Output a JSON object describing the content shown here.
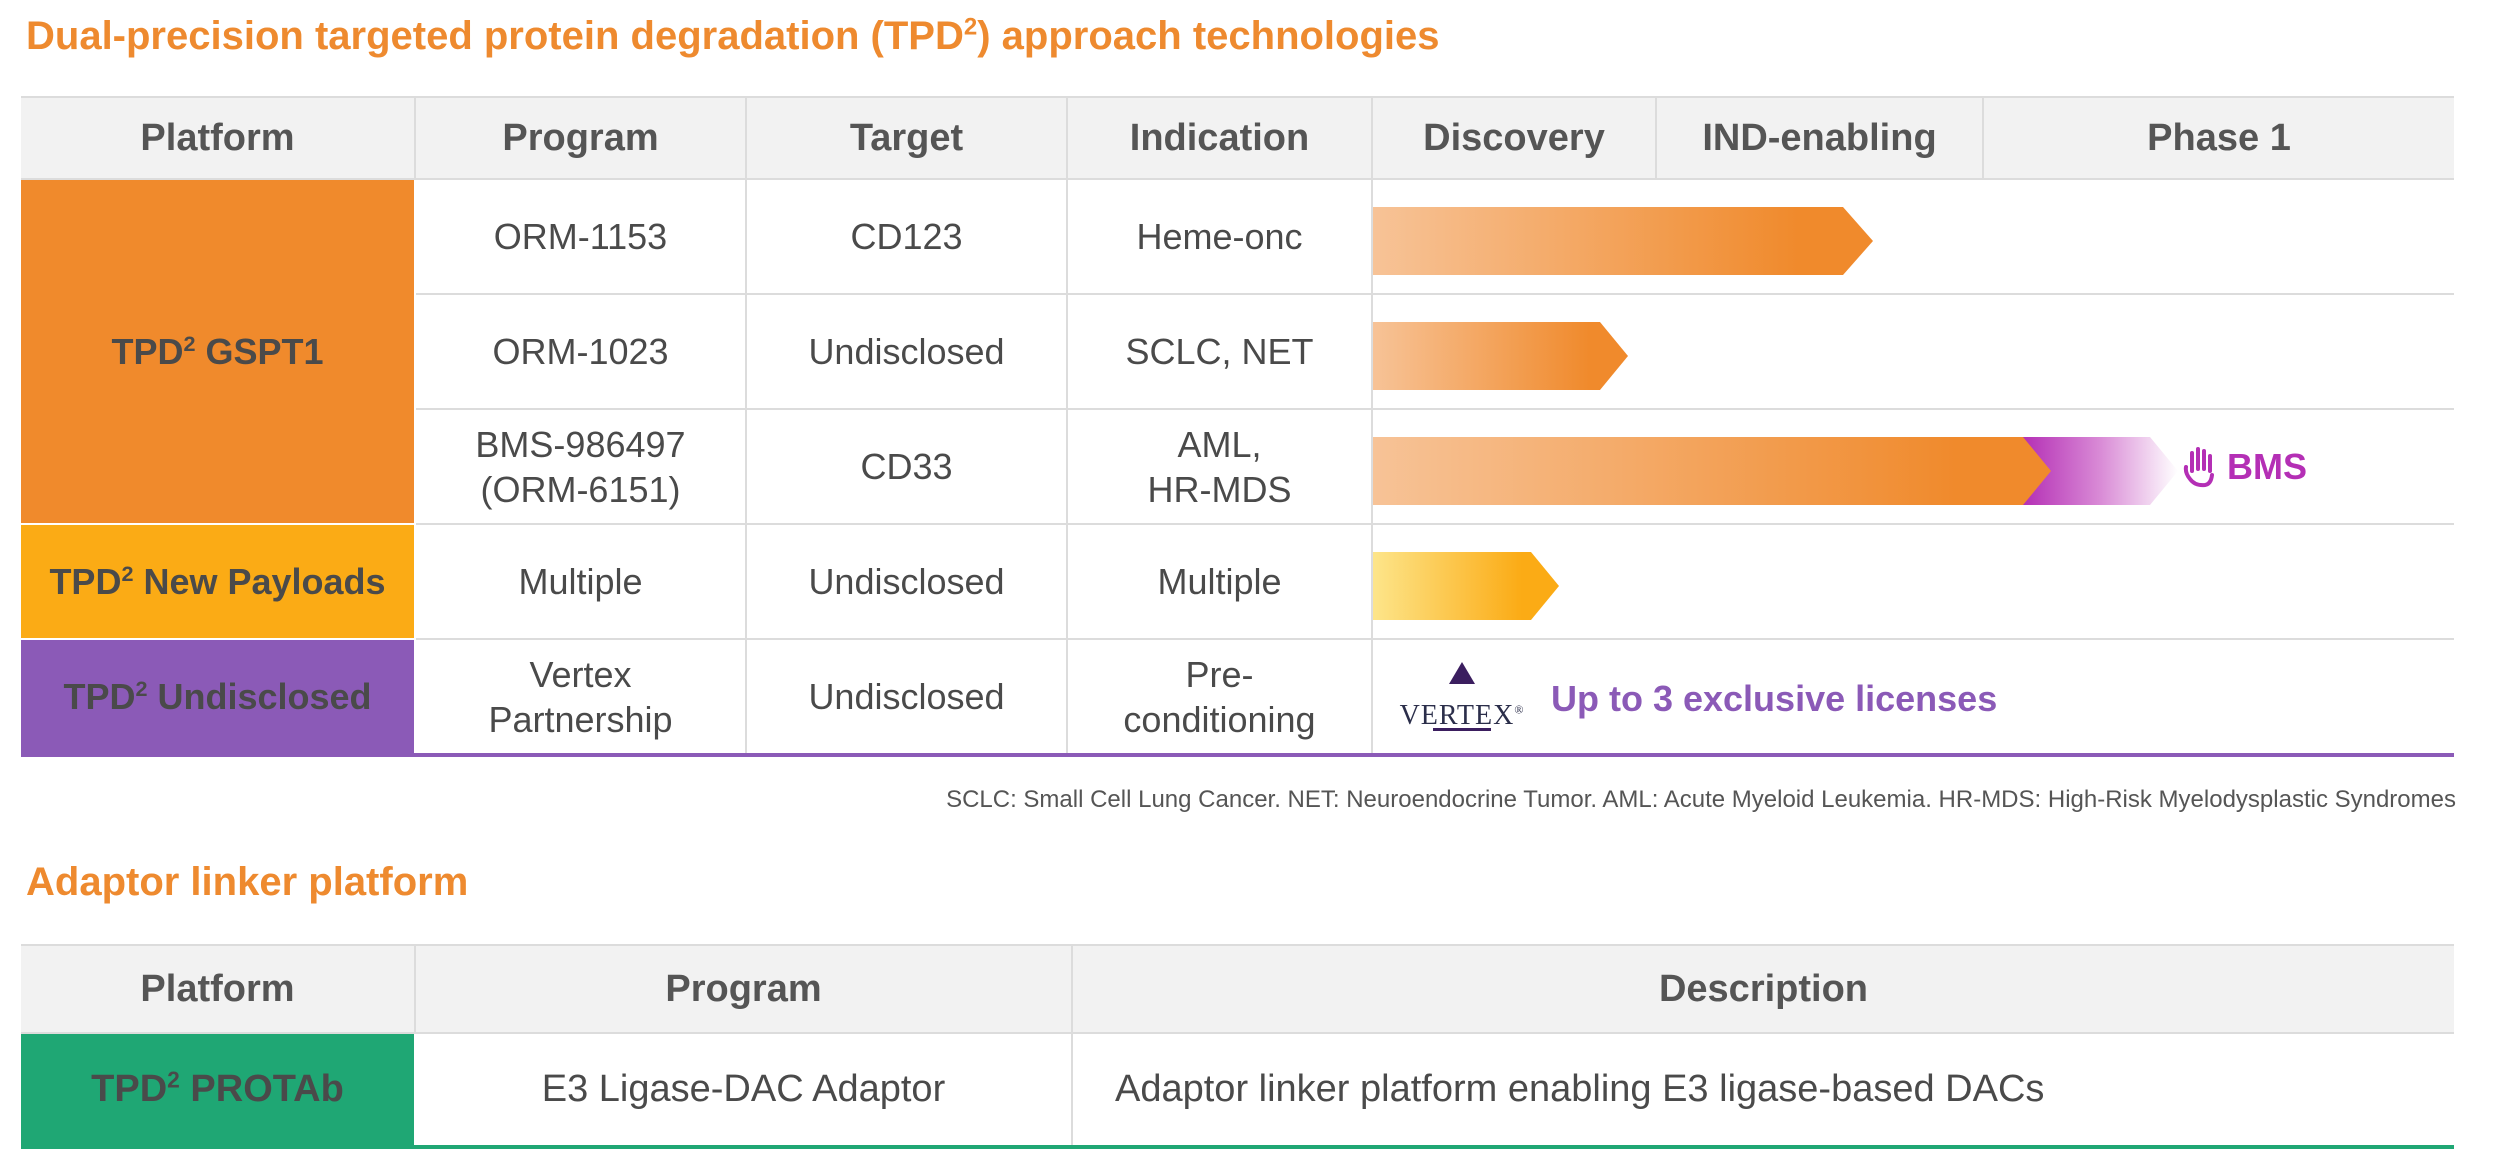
{
  "section1": {
    "title": "Dual-precision targeted protein degradation (TPD",
    "title_sup": "2",
    "title_end": ") approach technologies"
  },
  "pipeline": {
    "headers": [
      "Platform",
      "Program",
      "Target",
      "Indication",
      "Discovery",
      "IND-enabling",
      "Phase 1"
    ],
    "platforms": {
      "gspt1": {
        "prefix": "TPD",
        "sup": "2",
        "suffix": " GSPT1",
        "color": "#f08a2c"
      },
      "payloads": {
        "prefix": "TPD",
        "sup": "2",
        "suffix": " New Payloads",
        "color": "#fbab15"
      },
      "undisclosed": {
        "prefix": "TPD",
        "sup": "2",
        "suffix": " Undisclosed",
        "color": "#8b5ab7"
      }
    },
    "rows": [
      {
        "program": "ORM-1153",
        "target": "CD123",
        "indication": "Heme-onc",
        "progress_pct_of_phase_columns": 46
      },
      {
        "program": "ORM-1023",
        "target": "Undisclosed",
        "indication": "SCLC, NET",
        "progress_pct_of_phase_columns": 24
      },
      {
        "program_line1": "BMS-986497",
        "program_line2": "(ORM-6151)",
        "target": "CD33",
        "indication_line1": "AML,",
        "indication_line2": "HR-MDS",
        "progress_pct_of_phase_columns": 63,
        "partner": "BMS",
        "partner_color": "#b42fb5",
        "partner_icon": "hand-icon"
      },
      {
        "program": "Multiple",
        "target": "Undisclosed",
        "indication": "Multiple",
        "progress_pct_of_phase_columns": 17
      },
      {
        "program_line1": "Vertex",
        "program_line2": "Partnership",
        "target": "Undisclosed",
        "indication_line1": "Pre-",
        "indication_line2": "conditioning",
        "partner_logo": "VERTEX",
        "note": "Up to 3 exclusive licenses"
      }
    ]
  },
  "footnote": "SCLC: Small Cell Lung Cancer. NET: Neuroendocrine Tumor. AML: Acute Myeloid Leukemia. HR-MDS: High-Risk Myelodysplastic Syndromes",
  "section2": {
    "title": "Adaptor linker platform"
  },
  "adaptor": {
    "headers": [
      "Platform",
      "Program",
      "Description"
    ],
    "platform": {
      "prefix": "TPD",
      "sup": "2",
      "suffix": " PROTAb",
      "color": "#1fa774"
    },
    "program": "E3 Ligase-DAC Adaptor",
    "description": "Adaptor linker platform enabling E3 ligase-based DACs"
  }
}
